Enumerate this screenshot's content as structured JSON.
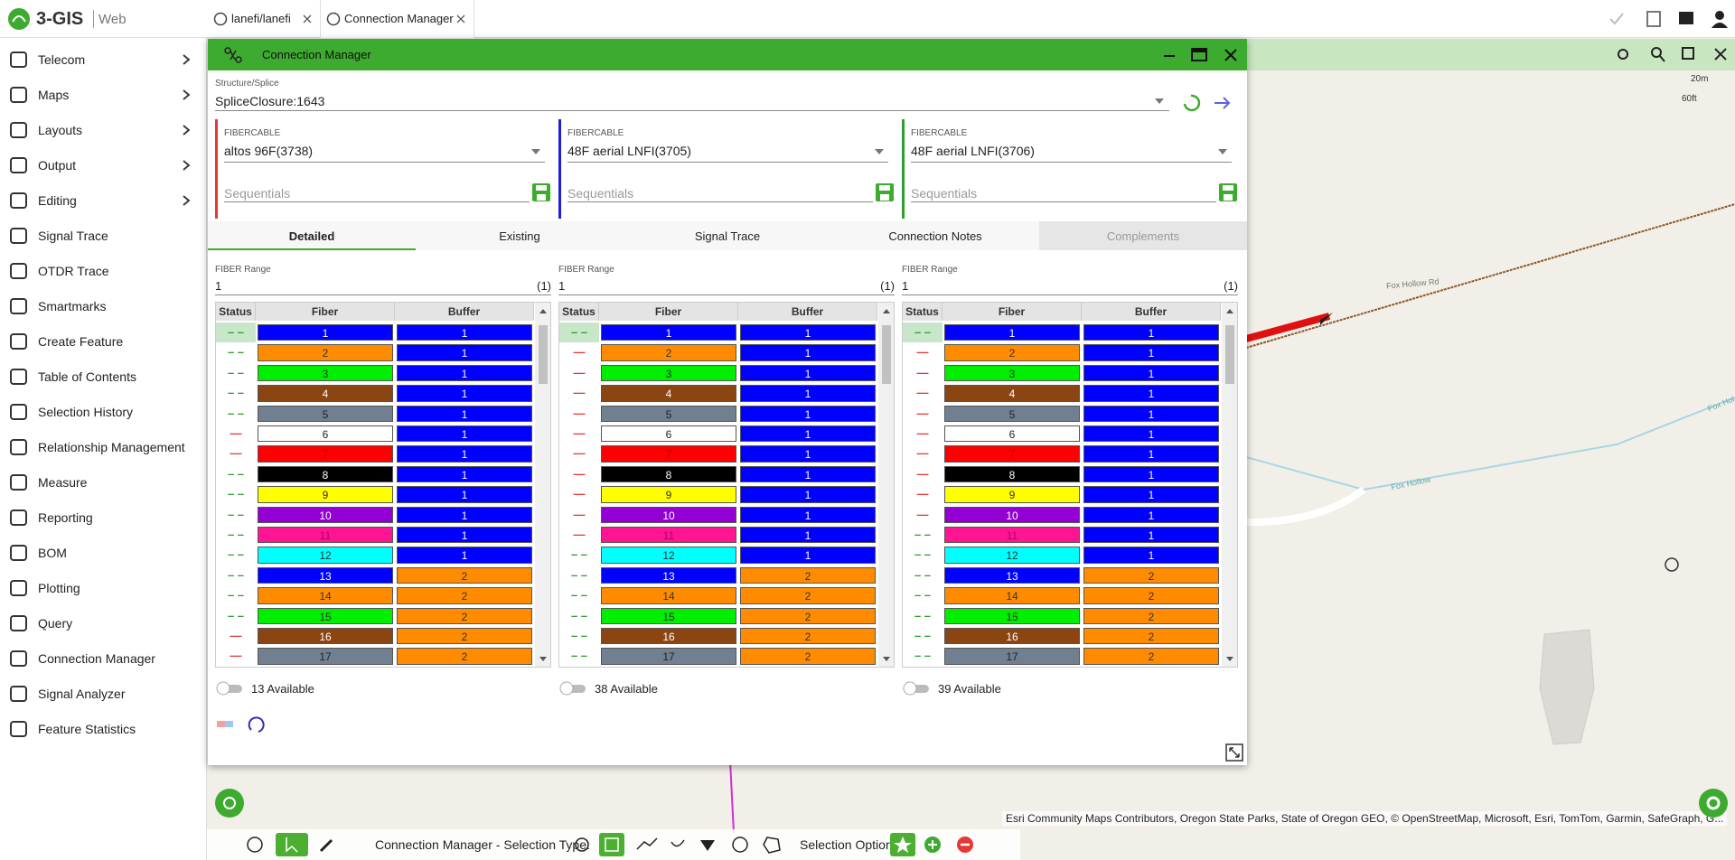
{
  "header": {
    "logo": "3-GIS",
    "product": "Web"
  },
  "tabs": [
    "lanefi/lanefi",
    "Connection Manager"
  ],
  "sidebar": [
    {
      "label": "Telecom",
      "submenu": true
    },
    {
      "label": "Maps",
      "submenu": true
    },
    {
      "label": "Layouts",
      "submenu": true
    },
    {
      "label": "Output",
      "submenu": true
    },
    {
      "label": "Editing",
      "submenu": true
    },
    {
      "label": "Signal Trace",
      "submenu": false
    },
    {
      "label": "OTDR Trace",
      "submenu": false
    },
    {
      "label": "Smartmarks",
      "submenu": false
    },
    {
      "label": "Create Feature",
      "submenu": false
    },
    {
      "label": "Table of Contents",
      "submenu": false
    },
    {
      "label": "Selection History",
      "submenu": false
    },
    {
      "label": "Relationship Management",
      "submenu": false
    },
    {
      "label": "Measure",
      "submenu": false
    },
    {
      "label": "Reporting",
      "submenu": false
    },
    {
      "label": "BOM",
      "submenu": false
    },
    {
      "label": "Plotting",
      "submenu": false
    },
    {
      "label": "Query",
      "submenu": false
    },
    {
      "label": "Connection Manager",
      "submenu": false
    },
    {
      "label": "Signal Analyzer",
      "submenu": false
    },
    {
      "label": "Feature Statistics",
      "submenu": false
    }
  ],
  "dialog": {
    "title": "Connection Manager",
    "structure_label": "Structure/Splice",
    "structure_value": "SpliceClosure:1643",
    "cables": [
      {
        "label": "FIBERCABLE",
        "value": "altos 96F(3738)",
        "placeholder": "Sequentials",
        "color": "#e53935"
      },
      {
        "label": "FIBERCABLE",
        "value": "48F aerial LNFI(3705)",
        "placeholder": "Sequentials",
        "color": "#1e1ee0"
      },
      {
        "label": "FIBERCABLE",
        "value": "48F aerial LNFI(3706)",
        "placeholder": "Sequentials",
        "color": "#2e9e2e"
      }
    ],
    "subtabs": [
      "Detailed",
      "Existing",
      "Signal Trace",
      "Connection Notes",
      "Complements"
    ],
    "active_subtab": 0,
    "disabled_subtab": 4,
    "fiber_palette": [
      {
        "bg": "#0000ff",
        "fg": "#ffffff"
      },
      {
        "bg": "#ff8c00",
        "fg": "#333333"
      },
      {
        "bg": "#00ee00",
        "fg": "#333333"
      },
      {
        "bg": "#8b4513",
        "fg": "#ffffff"
      },
      {
        "bg": "#708090",
        "fg": "#222222"
      },
      {
        "bg": "#ffffff",
        "fg": "#222222"
      },
      {
        "bg": "#ff0000",
        "fg": "#b00000"
      },
      {
        "bg": "#000000",
        "fg": "#ffffff"
      },
      {
        "bg": "#ffff00",
        "fg": "#333333"
      },
      {
        "bg": "#9400d3",
        "fg": "#ffffff"
      },
      {
        "bg": "#ff1493",
        "fg": "#b00060"
      },
      {
        "bg": "#00ffff",
        "fg": "#333333"
      }
    ],
    "status_colors": {
      "– –": "#2e9e2e",
      "—": "#e53935"
    },
    "headers": [
      "Status",
      "Fiber",
      "Buffer"
    ],
    "panels": [
      {
        "range_label": "FIBER Range",
        "range_from": "1",
        "range_count": "(1)",
        "available": "13 Available",
        "selected_row": 0,
        "rows": [
          [
            "– –",
            1,
            1
          ],
          [
            "– –",
            2,
            1
          ],
          [
            "– –",
            3,
            1
          ],
          [
            "– –",
            4,
            1
          ],
          [
            "– –",
            5,
            1
          ],
          [
            "—",
            6,
            1
          ],
          [
            "—",
            7,
            1
          ],
          [
            "– –",
            8,
            1
          ],
          [
            "– –",
            9,
            1
          ],
          [
            "– –",
            10,
            1
          ],
          [
            "– –",
            11,
            1
          ],
          [
            "– –",
            12,
            1
          ],
          [
            "– –",
            13,
            2
          ],
          [
            "– –",
            14,
            2
          ],
          [
            "– –",
            15,
            2
          ],
          [
            "—",
            16,
            2
          ],
          [
            "—",
            17,
            2
          ]
        ]
      },
      {
        "range_label": "FIBER Range",
        "range_from": "1",
        "range_count": "(1)",
        "available": "38 Available",
        "selected_row": 0,
        "rows": [
          [
            "– –",
            1,
            1
          ],
          [
            "—",
            2,
            1
          ],
          [
            "—",
            3,
            1
          ],
          [
            "—",
            4,
            1
          ],
          [
            "—",
            5,
            1
          ],
          [
            "—",
            6,
            1
          ],
          [
            "—",
            7,
            1
          ],
          [
            "—",
            8,
            1
          ],
          [
            "—",
            9,
            1
          ],
          [
            "—",
            10,
            1
          ],
          [
            "—",
            11,
            1
          ],
          [
            "– –",
            12,
            1
          ],
          [
            "– –",
            13,
            2
          ],
          [
            "– –",
            14,
            2
          ],
          [
            "– –",
            15,
            2
          ],
          [
            "– –",
            16,
            2
          ],
          [
            "– –",
            17,
            2
          ]
        ]
      },
      {
        "range_label": "FIBER Range",
        "range_from": "1",
        "range_count": "(1)",
        "available": "39 Available",
        "selected_row": 0,
        "rows": [
          [
            "– –",
            1,
            1
          ],
          [
            "—",
            2,
            1
          ],
          [
            "—",
            3,
            1
          ],
          [
            "—",
            4,
            1
          ],
          [
            "—",
            5,
            1
          ],
          [
            "—",
            6,
            1
          ],
          [
            "—",
            7,
            1
          ],
          [
            "—",
            8,
            1
          ],
          [
            "—",
            9,
            1
          ],
          [
            "—",
            10,
            1
          ],
          [
            "– –",
            11,
            1
          ],
          [
            "– –",
            12,
            1
          ],
          [
            "– –",
            13,
            2
          ],
          [
            "– –",
            14,
            2
          ],
          [
            "– –",
            15,
            2
          ],
          [
            "– –",
            16,
            2
          ],
          [
            "– –",
            17,
            2
          ]
        ]
      }
    ]
  },
  "map": {
    "scale_top": "20m",
    "scale_bottom": "60ft",
    "road_labels": [
      "Fox Hollow Rd",
      "Fox Hollow",
      "Fox Hol"
    ],
    "attribution": "Esri Community Maps Contributors, Oregon State Parks, State of Oregon GEO, © OpenStreetMap, Microsoft, Esri, TomTom, Garmin, SafeGraph, G..."
  },
  "toolbar": {
    "selection_type": "Connection Manager - Selection Type:",
    "selection_options": "Selection Options:"
  }
}
